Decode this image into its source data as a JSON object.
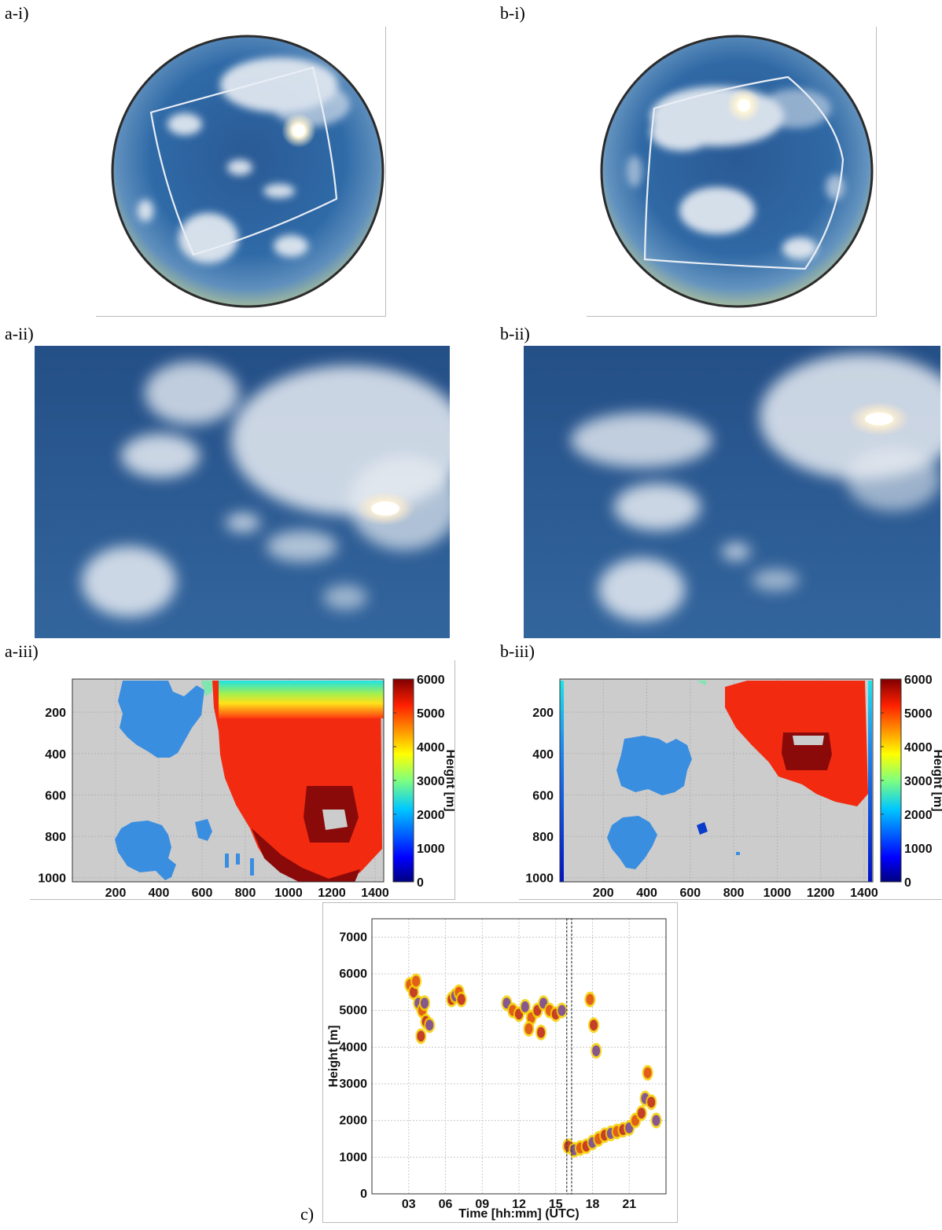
{
  "panels": {
    "a_i": "a-i)",
    "b_i": "b-i)",
    "a_ii": "a-ii)",
    "b_ii": "b-ii)",
    "a_iii": "a-iii)",
    "b_iii": "b-iii)",
    "c": "c)"
  },
  "colors": {
    "sky_deep": "#1f4d85",
    "sky_mid": "#3f6fa6",
    "cloud": "#e8edf3",
    "ground_grey": "#cccccc",
    "cloud_low": "#3a8ee0",
    "cloud_high": "#f22a10",
    "cloud_dark": "#8a0a0a"
  },
  "chart_data": [
    {
      "id": "a-iii",
      "type": "heatmap",
      "x_ticks": [
        200,
        400,
        600,
        800,
        1000,
        1200,
        1400
      ],
      "y_ticks": [
        200,
        400,
        600,
        800,
        1000
      ],
      "xlim": [
        0,
        1440
      ],
      "ylim": [
        1020,
        40
      ],
      "colorbar": {
        "label": "Height [m]",
        "ticks": [
          0,
          1000,
          2000,
          3000,
          4000,
          5000,
          6000
        ],
        "range": [
          0,
          6000
        ]
      }
    },
    {
      "id": "b-iii",
      "type": "heatmap",
      "x_ticks": [
        200,
        400,
        600,
        800,
        1000,
        1200,
        1400
      ],
      "y_ticks": [
        200,
        400,
        600,
        800,
        1000
      ],
      "xlim": [
        0,
        1440
      ],
      "ylim": [
        1020,
        40
      ],
      "colorbar": {
        "label": "Height [m]",
        "ticks": [
          0,
          1000,
          2000,
          3000,
          4000,
          5000,
          6000
        ],
        "range": [
          0,
          6000
        ]
      }
    },
    {
      "id": "c",
      "type": "scatter",
      "xlabel": "Time [hh:mm] (UTC)",
      "ylabel": "Height [m]",
      "x_ticks": [
        "03",
        "06",
        "09",
        "12",
        "15",
        "18",
        "21"
      ],
      "x_tick_values": [
        3,
        6,
        9,
        12,
        15,
        18,
        21
      ],
      "y_ticks": [
        0,
        1000,
        2000,
        3000,
        4000,
        5000,
        6000,
        7000
      ],
      "xlim": [
        0,
        24
      ],
      "ylim": [
        0,
        7500
      ],
      "highlight_window": [
        15.9,
        16.3
      ],
      "series": [
        {
          "points": [
            [
              3.1,
              5700
            ],
            [
              3.4,
              5500
            ],
            [
              3.8,
              5200
            ],
            [
              4.1,
              5000
            ],
            [
              4.4,
              4700
            ],
            [
              4.7,
              4600
            ],
            [
              3.6,
              5800
            ],
            [
              4.0,
              4300
            ],
            [
              4.3,
              5200
            ]
          ]
        },
        {
          "points": [
            [
              6.5,
              5300
            ],
            [
              6.8,
              5400
            ],
            [
              7.1,
              5500
            ],
            [
              7.3,
              5300
            ]
          ]
        },
        {
          "points": [
            [
              11.0,
              5200
            ],
            [
              11.5,
              5000
            ],
            [
              12.0,
              4900
            ],
            [
              12.5,
              5100
            ],
            [
              13.0,
              4800
            ],
            [
              13.5,
              5000
            ],
            [
              14.0,
              5200
            ],
            [
              14.5,
              5000
            ],
            [
              15.0,
              4900
            ],
            [
              15.5,
              5000
            ],
            [
              12.8,
              4500
            ],
            [
              13.8,
              4400
            ]
          ]
        },
        {
          "points": [
            [
              17.8,
              5300
            ],
            [
              18.1,
              4600
            ],
            [
              18.3,
              3900
            ]
          ]
        },
        {
          "points": [
            [
              16.0,
              1300
            ],
            [
              16.5,
              1200
            ],
            [
              17.0,
              1250
            ],
            [
              17.5,
              1300
            ],
            [
              18.0,
              1400
            ],
            [
              18.5,
              1500
            ],
            [
              19.0,
              1600
            ],
            [
              19.5,
              1650
            ],
            [
              20.0,
              1700
            ],
            [
              20.5,
              1750
            ],
            [
              21.0,
              1800
            ],
            [
              21.5,
              2000
            ],
            [
              22.0,
              2200
            ],
            [
              22.3,
              2600
            ],
            [
              22.5,
              3300
            ],
            [
              22.8,
              2500
            ],
            [
              23.2,
              2000
            ]
          ]
        }
      ]
    }
  ]
}
